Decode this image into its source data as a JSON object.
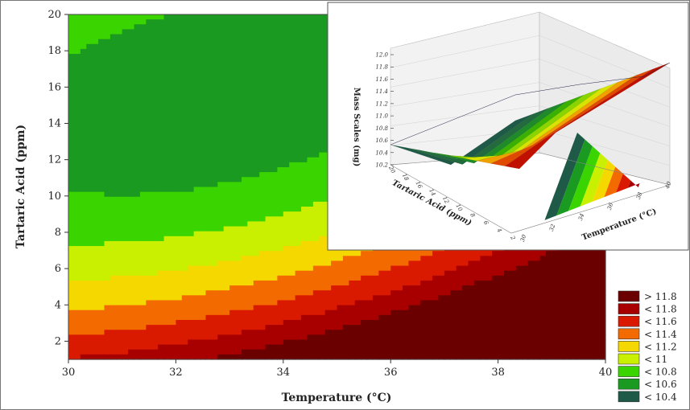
{
  "chart_data": [
    {
      "type": "contour",
      "xlabel": "Temperature (°C)",
      "ylabel": "Tartaric Acid (ppm)",
      "xlim": [
        30,
        40
      ],
      "ylim": [
        1,
        20
      ],
      "xticks": [
        "30",
        "32",
        "34",
        "36",
        "38",
        "40"
      ],
      "yticks": [
        "2",
        "4",
        "6",
        "8",
        "10",
        "12",
        "14",
        "16",
        "18",
        "20"
      ],
      "legend_placement": "bottom-right",
      "legend": [
        {
          "label": "> 11.8",
          "color": "#6b0000"
        },
        {
          "label": "< 11.8",
          "color": "#a80000"
        },
        {
          "label": "< 11.6",
          "color": "#d91a00"
        },
        {
          "label": "< 11.4",
          "color": "#f26a00"
        },
        {
          "label": "< 11.2",
          "color": "#f5d800"
        },
        {
          "label": "< 11",
          "color": "#c8f000"
        },
        {
          "label": "< 10.8",
          "color": "#3ad400"
        },
        {
          "label": "< 10.6",
          "color": "#1a9a20"
        },
        {
          "label": "< 10.4",
          "color": "#1f5a48"
        }
      ]
    },
    {
      "type": "surface",
      "zlabel": "Mass Scales (mg)",
      "ylabel": "Tartaric Acid (ppm)",
      "xlabel": "Temperature (°C)",
      "zticks": [
        "10.2",
        "10.4",
        "10.6",
        "10.8",
        "11.0",
        "11.2",
        "11.4",
        "11.6",
        "11.8",
        "12.0"
      ],
      "acid_ticks": [
        "20",
        "18",
        "16",
        "14",
        "12",
        "10",
        "8",
        "6",
        "4",
        "2"
      ],
      "temp_ticks": [
        "30",
        "32",
        "34",
        "36",
        "38",
        "40"
      ]
    }
  ]
}
